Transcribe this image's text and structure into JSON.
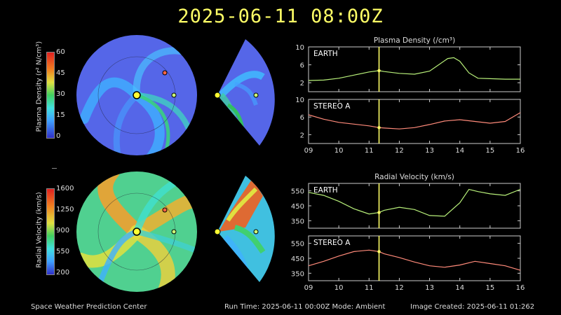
{
  "title": "2025-06-11 08:00Z",
  "colorbars": [
    {
      "label_html": "Plasma Density (r² N/cm³)",
      "ticks": [
        "60",
        "45",
        "30",
        "15",
        "0"
      ]
    },
    {
      "label": "Radial Velocity (km/s)",
      "ticks": [
        "1600",
        "1250",
        "900",
        "550",
        "200"
      ]
    }
  ],
  "plots": {
    "density_title": "Plasma Density (/cm³)",
    "velocity_title": "Radial Velocity (km/s)",
    "earth_label": "EARTH",
    "stereo_label": "STEREO A",
    "x_ticks": [
      "09",
      "10",
      "11",
      "12",
      "13",
      "14",
      "15",
      "16"
    ],
    "density_y_ticks": [
      "10",
      "6",
      "2"
    ],
    "density_y_ticks_b": [
      "10",
      "6",
      "2"
    ],
    "velocity_y_ticks": [
      "550",
      "450",
      "350"
    ],
    "velocity_y_ticks_b": [
      "550",
      "450",
      "350"
    ],
    "earth_color": "#b8f07a",
    "stereo_color": "#ff8a7a",
    "marker_color": "#ffff66",
    "current_time_day": 11.33
  },
  "chart_data": [
    {
      "type": "line",
      "title": "Plasma Density (/cm³)",
      "series": [
        {
          "name": "EARTH",
          "x": [
            9,
            9.5,
            10,
            10.5,
            11,
            11.33,
            11.5,
            12,
            12.5,
            13,
            13.3,
            13.6,
            13.8,
            14,
            14.3,
            14.6,
            15,
            15.5,
            16
          ],
          "values": [
            2.5,
            2.6,
            3.0,
            3.7,
            4.4,
            4.7,
            4.5,
            4.1,
            3.9,
            4.6,
            6.0,
            7.4,
            7.6,
            6.8,
            4.2,
            3.0,
            2.9,
            2.8,
            2.8
          ]
        }
      ],
      "ylim": [
        0,
        10
      ],
      "xlim": [
        9,
        16
      ]
    },
    {
      "type": "line",
      "title": "Plasma Density (/cm³)",
      "series": [
        {
          "name": "STEREO A",
          "x": [
            9,
            9.5,
            10,
            10.5,
            11,
            11.33,
            11.5,
            12,
            12.5,
            13,
            13.5,
            14,
            14.5,
            15,
            15.5,
            16
          ],
          "values": [
            6.5,
            5.5,
            4.8,
            4.4,
            4.0,
            3.6,
            3.5,
            3.3,
            3.6,
            4.3,
            5.1,
            5.4,
            5.0,
            4.6,
            5.0,
            7.0
          ]
        }
      ],
      "ylim": [
        0,
        10
      ],
      "xlim": [
        9,
        16
      ]
    },
    {
      "type": "line",
      "title": "Radial Velocity (km/s)",
      "series": [
        {
          "name": "EARTH",
          "x": [
            9,
            9.5,
            10,
            10.5,
            11,
            11.33,
            11.5,
            12,
            12.5,
            13,
            13.5,
            14,
            14.3,
            14.6,
            15,
            15.5,
            16
          ],
          "values": [
            540,
            520,
            480,
            430,
            395,
            405,
            420,
            440,
            425,
            385,
            380,
            470,
            560,
            545,
            530,
            520,
            560
          ]
        }
      ],
      "ylim": [
        300,
        600
      ],
      "xlim": [
        9,
        16
      ]
    },
    {
      "type": "line",
      "title": "Radial Velocity (km/s)",
      "series": [
        {
          "name": "STEREO A",
          "x": [
            9,
            9.5,
            10,
            10.5,
            11,
            11.33,
            11.5,
            12,
            12.5,
            13,
            13.5,
            14,
            14.5,
            15,
            15.5,
            16
          ],
          "values": [
            400,
            430,
            465,
            495,
            505,
            495,
            480,
            455,
            425,
            400,
            390,
            405,
            430,
            415,
            400,
            370
          ]
        }
      ],
      "ylim": [
        300,
        600
      ],
      "xlim": [
        9,
        16
      ]
    }
  ],
  "footer": {
    "left": "Space Weather Prediction Center",
    "middle": "Run Time: 2025-06-11 00:00Z  Mode: Ambient",
    "right": "Image Created: 2025-06-11 01:262"
  }
}
